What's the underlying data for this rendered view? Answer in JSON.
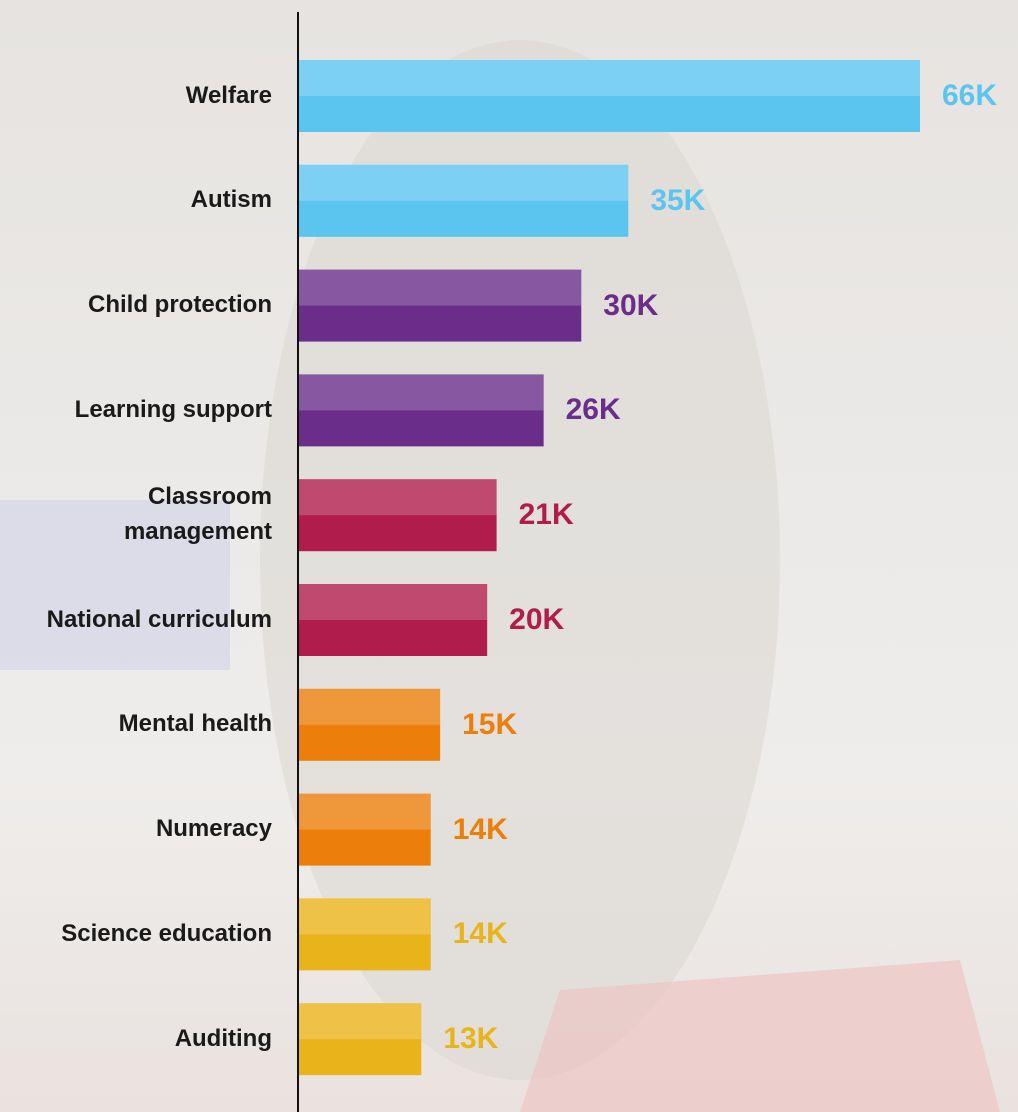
{
  "chart_data": {
    "type": "bar",
    "orientation": "horizontal",
    "categories": [
      "Welfare",
      "Autism",
      "Child protection",
      "Learning support",
      "Classroom management",
      "National curriculum",
      "Mental health",
      "Numeracy",
      "Science education",
      "Auditing"
    ],
    "values": [
      66,
      35,
      30,
      26,
      21,
      20,
      15,
      14,
      14,
      13
    ],
    "value_labels": [
      "66K",
      "35K",
      "30K",
      "26K",
      "21K",
      "20K",
      "15K",
      "14K",
      "14K",
      "13K"
    ],
    "colors": [
      "#5bc5f0",
      "#5bc5f0",
      "#6b2d8a",
      "#6b2d8a",
      "#b01c4b",
      "#b01c4b",
      "#ec7f0a",
      "#ec7f0a",
      "#e9b31a",
      "#e9b31a"
    ]
  }
}
